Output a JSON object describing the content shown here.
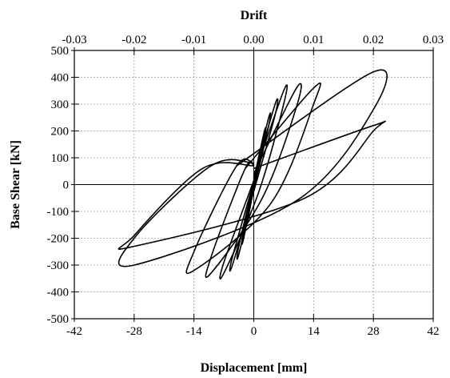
{
  "chart_data": {
    "type": "line",
    "title": "",
    "xlabel": "Displacement [mm]",
    "ylabel": "Base Shear [kN]",
    "x2label": "Drift",
    "xlim": [
      -42,
      42
    ],
    "ylim": [
      -500,
      500
    ],
    "x2lim": [
      -0.03,
      0.03
    ],
    "x_ticks": [
      -42,
      -28,
      -14,
      0,
      14,
      28,
      42
    ],
    "y_ticks": [
      -500,
      -400,
      -300,
      -200,
      -100,
      0,
      100,
      200,
      300,
      400,
      500
    ],
    "x2_ticks": [
      -0.03,
      -0.02,
      -0.01,
      0.0,
      0.01,
      0.02,
      0.03
    ],
    "x_tick_labels": [
      "-42",
      "-28",
      "-14",
      "0",
      "14",
      "28",
      "42"
    ],
    "y_tick_labels": [
      "-500",
      "-400",
      "-300",
      "-200",
      "-100",
      "0",
      "100",
      "200",
      "300",
      "400",
      "500"
    ],
    "x2_tick_labels": [
      "-0.03",
      "-0.02",
      "-0.01",
      "0.00",
      "0.01",
      "0.02",
      "0.03"
    ],
    "grid": true,
    "color": "#000000",
    "series": [
      {
        "x": [
          0,
          1.5,
          1.5,
          0,
          -1.5,
          -1.5,
          0
        ],
        "y": [
          10,
          130,
          110,
          -10,
          -140,
          -120,
          5
        ]
      },
      {
        "x": [
          0,
          2.5,
          2.5,
          0,
          -2.5,
          -2.5,
          0
        ],
        "y": [
          15,
          200,
          170,
          -15,
          -210,
          -180,
          5
        ]
      },
      {
        "x": [
          0,
          3.5,
          3.5,
          0,
          -3.5,
          -3.5,
          0
        ],
        "y": [
          20,
          250,
          220,
          -20,
          -260,
          -230,
          10
        ]
      },
      {
        "x": [
          0,
          5,
          5,
          0,
          -5,
          -5,
          0
        ],
        "y": [
          25,
          300,
          260,
          -25,
          -300,
          -270,
          10
        ]
      },
      {
        "x": [
          0,
          7,
          7,
          1,
          -7,
          -7,
          0
        ],
        "y": [
          30,
          350,
          300,
          -35,
          -330,
          -290,
          15
        ]
      },
      {
        "x": [
          0,
          10,
          10,
          2,
          -10,
          -10,
          -2,
          0
        ],
        "y": [
          40,
          360,
          290,
          -50,
          -330,
          -270,
          60,
          70
        ]
      },
      {
        "x": [
          -2,
          14,
          14,
          4,
          -14,
          -14,
          -4,
          0
        ],
        "y": [
          60,
          360,
          300,
          -70,
          -320,
          -250,
          70,
          75
        ]
      },
      {
        "x": [
          -4,
          28,
          28,
          10,
          -28,
          -28,
          -10,
          0
        ],
        "y": [
          70,
          420,
          280,
          -60,
          -300,
          -200,
          70,
          80
        ]
      },
      {
        "x": [
          0,
          28,
          28,
          12,
          -28,
          -28,
          -12,
          0
        ],
        "y": [
          60,
          220,
          200,
          -50,
          -230,
          -190,
          60,
          70
        ]
      }
    ]
  }
}
